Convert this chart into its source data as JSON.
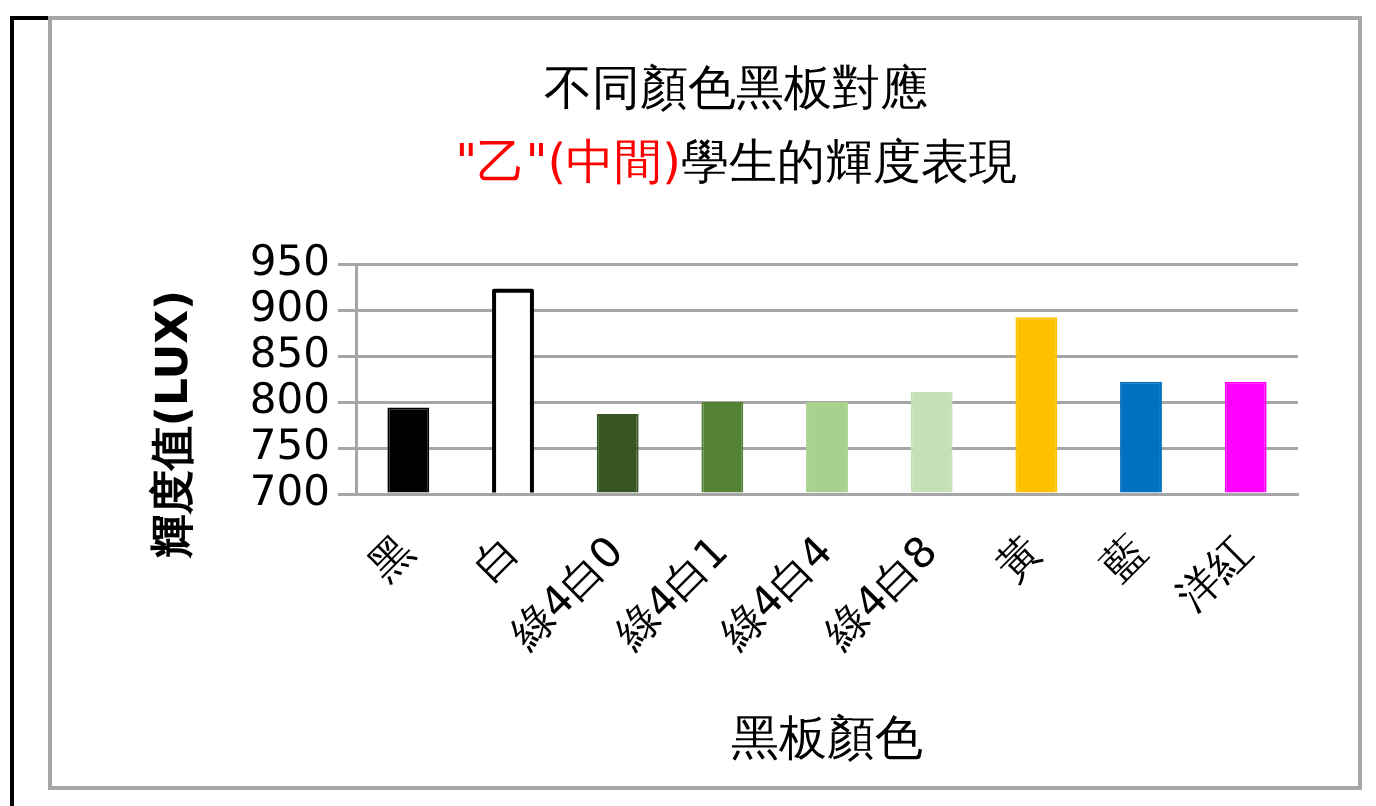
{
  "chart_data": {
    "type": "bar",
    "title": "不同顏色黑板對應",
    "subtitle": "\"乙\"(中間)學生的輝度表現",
    "xlabel": "黑板顏色",
    "ylabel": "輝度值(LUX)",
    "categories": [
      "黑",
      "白",
      "綠4白0",
      "綠4白1",
      "綠4白4",
      "綠4白8",
      "黃",
      "藍",
      "洋紅"
    ],
    "values": [
      794,
      923,
      787,
      800,
      800,
      811,
      892,
      822,
      822
    ],
    "colors": [
      "#000000",
      "#ffffff",
      "#375623",
      "#548235",
      "#a9d18e",
      "#c5e0b4",
      "#ffc000",
      "#0070c0",
      "#ff00ff"
    ],
    "ylim": [
      700,
      950
    ],
    "yticks": [
      700,
      750,
      800,
      850,
      900,
      950
    ],
    "grid": "y"
  }
}
